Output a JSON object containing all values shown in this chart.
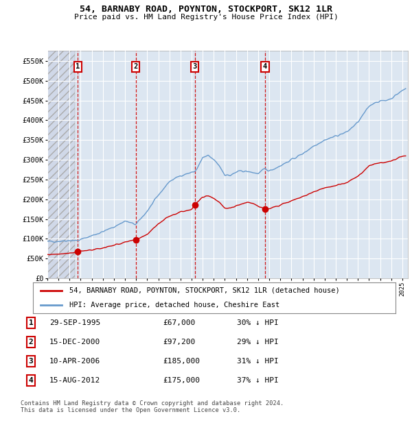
{
  "title": "54, BARNABY ROAD, POYNTON, STOCKPORT, SK12 1LR",
  "subtitle": "Price paid vs. HM Land Registry's House Price Index (HPI)",
  "ylim": [
    0,
    575000
  ],
  "yticks": [
    0,
    50000,
    100000,
    150000,
    200000,
    250000,
    300000,
    350000,
    400000,
    450000,
    500000,
    550000
  ],
  "ytick_labels": [
    "£0",
    "£50K",
    "£100K",
    "£150K",
    "£200K",
    "£250K",
    "£300K",
    "£350K",
    "£400K",
    "£450K",
    "£500K",
    "£550K"
  ],
  "background_color": "#ffffff",
  "plot_bg_color": "#dce6f1",
  "grid_color": "#ffffff",
  "sale_dates": [
    1995.75,
    2000.96,
    2006.28,
    2012.62
  ],
  "sale_prices": [
    67000,
    97200,
    185000,
    175000
  ],
  "sale_labels": [
    "1",
    "2",
    "3",
    "4"
  ],
  "sale_color": "#cc0000",
  "hpi_color": "#6699cc",
  "legend_sale_label": "54, BARNABY ROAD, POYNTON, STOCKPORT, SK12 1LR (detached house)",
  "legend_hpi_label": "HPI: Average price, detached house, Cheshire East",
  "table_rows": [
    [
      "1",
      "29-SEP-1995",
      "£67,000",
      "30% ↓ HPI"
    ],
    [
      "2",
      "15-DEC-2000",
      "£97,200",
      "29% ↓ HPI"
    ],
    [
      "3",
      "10-APR-2006",
      "£185,000",
      "31% ↓ HPI"
    ],
    [
      "4",
      "15-AUG-2012",
      "£175,000",
      "37% ↓ HPI"
    ]
  ],
  "footnote": "Contains HM Land Registry data © Crown copyright and database right 2024.\nThis data is licensed under the Open Government Licence v3.0.",
  "xlim_start": 1993.0,
  "xlim_end": 2025.5,
  "hpi_anchors": [
    [
      1993.0,
      93000
    ],
    [
      1994.0,
      94000
    ],
    [
      1995.0,
      96000
    ],
    [
      1995.75,
      95700
    ],
    [
      1996.0,
      98000
    ],
    [
      1997.0,
      108000
    ],
    [
      1998.0,
      118000
    ],
    [
      1999.0,
      130000
    ],
    [
      2000.0,
      145000
    ],
    [
      2000.96,
      136000
    ],
    [
      2001.0,
      137000
    ],
    [
      2002.0,
      170000
    ],
    [
      2003.0,
      210000
    ],
    [
      2004.0,
      245000
    ],
    [
      2005.0,
      260000
    ],
    [
      2006.0,
      268000
    ],
    [
      2006.28,
      270000
    ],
    [
      2006.5,
      278000
    ],
    [
      2007.0,
      305000
    ],
    [
      2007.5,
      310000
    ],
    [
      2008.0,
      300000
    ],
    [
      2008.5,
      285000
    ],
    [
      2009.0,
      262000
    ],
    [
      2009.5,
      260000
    ],
    [
      2010.0,
      268000
    ],
    [
      2010.5,
      272000
    ],
    [
      2011.0,
      270000
    ],
    [
      2011.5,
      268000
    ],
    [
      2012.0,
      265000
    ],
    [
      2012.62,
      277000
    ],
    [
      2013.0,
      272000
    ],
    [
      2013.5,
      278000
    ],
    [
      2014.0,
      285000
    ],
    [
      2015.0,
      300000
    ],
    [
      2016.0,
      315000
    ],
    [
      2017.0,
      335000
    ],
    [
      2018.0,
      350000
    ],
    [
      2019.0,
      360000
    ],
    [
      2020.0,
      370000
    ],
    [
      2021.0,
      395000
    ],
    [
      2022.0,
      435000
    ],
    [
      2022.5,
      445000
    ],
    [
      2023.0,
      448000
    ],
    [
      2023.5,
      450000
    ],
    [
      2024.0,
      455000
    ],
    [
      2024.5,
      465000
    ],
    [
      2025.0,
      475000
    ],
    [
      2025.3,
      480000
    ]
  ],
  "sale_anchors": [
    [
      1993.0,
      60000
    ],
    [
      1994.0,
      62000
    ],
    [
      1995.0,
      64000
    ],
    [
      1995.75,
      67000
    ],
    [
      1996.0,
      68000
    ],
    [
      1997.0,
      72000
    ],
    [
      1998.0,
      77000
    ],
    [
      1999.0,
      84000
    ],
    [
      2000.0,
      91000
    ],
    [
      2000.96,
      97200
    ],
    [
      2001.0,
      97500
    ],
    [
      2002.0,
      112000
    ],
    [
      2003.0,
      138000
    ],
    [
      2004.0,
      158000
    ],
    [
      2005.0,
      168000
    ],
    [
      2006.0,
      175000
    ],
    [
      2006.28,
      185000
    ],
    [
      2006.5,
      192000
    ],
    [
      2007.0,
      205000
    ],
    [
      2007.5,
      210000
    ],
    [
      2008.0,
      202000
    ],
    [
      2008.5,
      193000
    ],
    [
      2009.0,
      178000
    ],
    [
      2009.5,
      177000
    ],
    [
      2010.0,
      183000
    ],
    [
      2010.5,
      188000
    ],
    [
      2011.0,
      192000
    ],
    [
      2011.5,
      190000
    ],
    [
      2012.0,
      183000
    ],
    [
      2012.62,
      175000
    ],
    [
      2013.0,
      176000
    ],
    [
      2013.5,
      181000
    ],
    [
      2014.0,
      186000
    ],
    [
      2015.0,
      196000
    ],
    [
      2016.0,
      206000
    ],
    [
      2017.0,
      219000
    ],
    [
      2018.0,
      229000
    ],
    [
      2019.0,
      235000
    ],
    [
      2020.0,
      242000
    ],
    [
      2021.0,
      258000
    ],
    [
      2022.0,
      284000
    ],
    [
      2022.5,
      290000
    ],
    [
      2023.0,
      292000
    ],
    [
      2023.5,
      294000
    ],
    [
      2024.0,
      297000
    ],
    [
      2024.5,
      303000
    ],
    [
      2025.0,
      308000
    ],
    [
      2025.3,
      310000
    ]
  ]
}
